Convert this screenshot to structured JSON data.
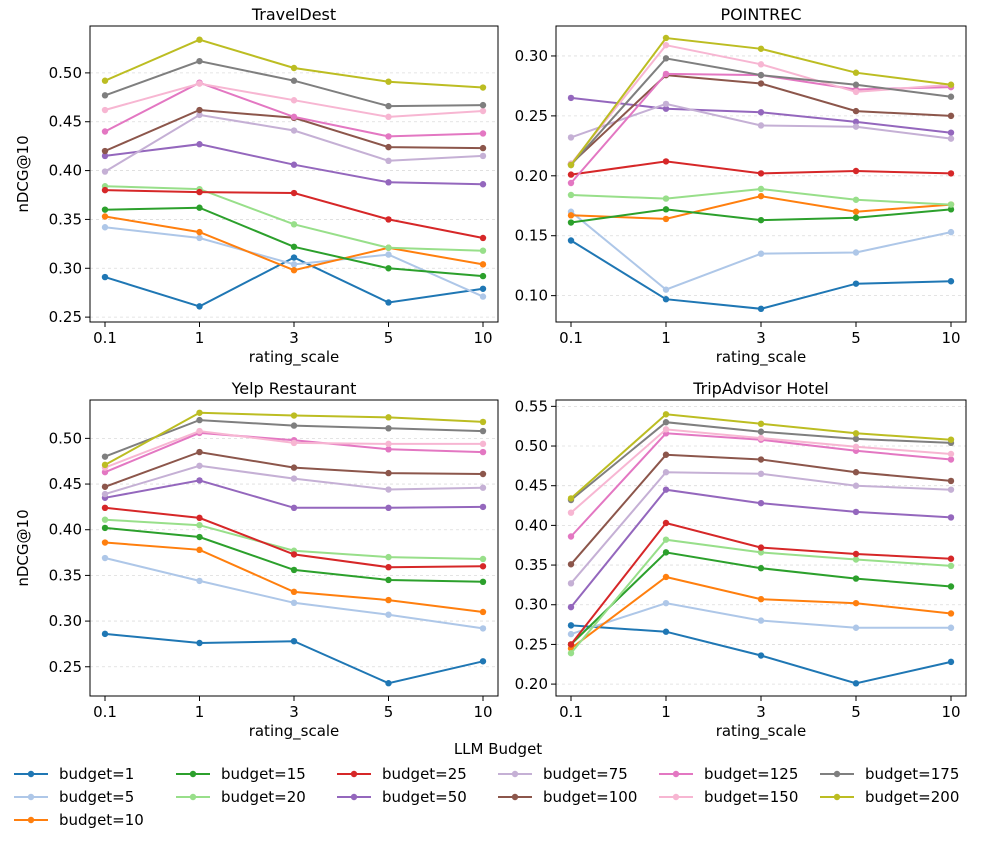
{
  "figure": {
    "legend_title": "LLM Budget"
  },
  "chart_data": [
    {
      "type": "line",
      "title": "TravelDest",
      "xlabel": "rating_scale",
      "ylabel": "nDCG@10",
      "categories": [
        "0.1",
        "1",
        "3",
        "5",
        "10"
      ],
      "ylim": [
        0.245,
        0.548
      ],
      "yticks": [
        "0.25",
        "0.30",
        "0.35",
        "0.40",
        "0.45",
        "0.50"
      ],
      "series": [
        {
          "name": "budget=1",
          "values": [
            0.291,
            0.261,
            0.311,
            0.265,
            0.279
          ]
        },
        {
          "name": "budget=5",
          "values": [
            0.342,
            0.331,
            0.304,
            0.314,
            0.271
          ]
        },
        {
          "name": "budget=10",
          "values": [
            0.353,
            0.337,
            0.298,
            0.321,
            0.304
          ]
        },
        {
          "name": "budget=15",
          "values": [
            0.36,
            0.362,
            0.322,
            0.3,
            0.292
          ]
        },
        {
          "name": "budget=20",
          "values": [
            0.384,
            0.381,
            0.345,
            0.321,
            0.318
          ]
        },
        {
          "name": "budget=25",
          "values": [
            0.38,
            0.378,
            0.377,
            0.35,
            0.331
          ]
        },
        {
          "name": "budget=50",
          "values": [
            0.415,
            0.427,
            0.406,
            0.388,
            0.386
          ]
        },
        {
          "name": "budget=75",
          "values": [
            0.399,
            0.457,
            0.441,
            0.41,
            0.415
          ]
        },
        {
          "name": "budget=100",
          "values": [
            0.42,
            0.462,
            0.454,
            0.424,
            0.423
          ]
        },
        {
          "name": "budget=125",
          "values": [
            0.44,
            0.49,
            0.455,
            0.435,
            0.438
          ]
        },
        {
          "name": "budget=150",
          "values": [
            0.462,
            0.489,
            0.472,
            0.455,
            0.461
          ]
        },
        {
          "name": "budget=175",
          "values": [
            0.477,
            0.512,
            0.492,
            0.466,
            0.467
          ]
        },
        {
          "name": "budget=200",
          "values": [
            0.492,
            0.534,
            0.505,
            0.491,
            0.485
          ]
        }
      ]
    },
    {
      "type": "line",
      "title": "POINTREC",
      "xlabel": "rating_scale",
      "ylabel": "",
      "categories": [
        "0.1",
        "1",
        "3",
        "5",
        "10"
      ],
      "ylim": [
        0.078,
        0.325
      ],
      "yticks": [
        "0.10",
        "0.15",
        "0.20",
        "0.25",
        "0.30"
      ],
      "series": [
        {
          "name": "budget=1",
          "values": [
            0.146,
            0.097,
            0.089,
            0.11,
            0.112
          ]
        },
        {
          "name": "budget=5",
          "values": [
            0.17,
            0.105,
            0.135,
            0.136,
            0.153
          ]
        },
        {
          "name": "budget=10",
          "values": [
            0.167,
            0.164,
            0.183,
            0.17,
            0.176
          ]
        },
        {
          "name": "budget=15",
          "values": [
            0.161,
            0.172,
            0.163,
            0.165,
            0.172
          ]
        },
        {
          "name": "budget=20",
          "values": [
            0.184,
            0.181,
            0.189,
            0.18,
            0.176
          ]
        },
        {
          "name": "budget=25",
          "values": [
            0.201,
            0.212,
            0.202,
            0.204,
            0.202
          ]
        },
        {
          "name": "budget=50",
          "values": [
            0.265,
            0.256,
            0.253,
            0.245,
            0.236
          ]
        },
        {
          "name": "budget=75",
          "values": [
            0.232,
            0.26,
            0.242,
            0.241,
            0.231
          ]
        },
        {
          "name": "budget=100",
          "values": [
            0.21,
            0.284,
            0.277,
            0.254,
            0.25
          ]
        },
        {
          "name": "budget=125",
          "values": [
            0.194,
            0.285,
            0.284,
            0.272,
            0.274
          ]
        },
        {
          "name": "budget=150",
          "values": [
            0.21,
            0.309,
            0.293,
            0.27,
            0.276
          ]
        },
        {
          "name": "budget=175",
          "values": [
            0.209,
            0.298,
            0.284,
            0.276,
            0.266
          ]
        },
        {
          "name": "budget=200",
          "values": [
            0.209,
            0.315,
            0.306,
            0.286,
            0.276
          ]
        }
      ]
    },
    {
      "type": "line",
      "title": "Yelp Restaurant",
      "xlabel": "rating_scale",
      "ylabel": "nDCG@10",
      "categories": [
        "0.1",
        "1",
        "3",
        "5",
        "10"
      ],
      "ylim": [
        0.218,
        0.542
      ],
      "yticks": [
        "0.25",
        "0.30",
        "0.35",
        "0.40",
        "0.45",
        "0.50"
      ],
      "series": [
        {
          "name": "budget=1",
          "values": [
            0.286,
            0.276,
            0.278,
            0.232,
            0.256
          ]
        },
        {
          "name": "budget=5",
          "values": [
            0.369,
            0.344,
            0.32,
            0.307,
            0.292
          ]
        },
        {
          "name": "budget=10",
          "values": [
            0.386,
            0.378,
            0.332,
            0.323,
            0.31
          ]
        },
        {
          "name": "budget=15",
          "values": [
            0.402,
            0.392,
            0.356,
            0.345,
            0.343
          ]
        },
        {
          "name": "budget=20",
          "values": [
            0.411,
            0.405,
            0.377,
            0.37,
            0.368
          ]
        },
        {
          "name": "budget=25",
          "values": [
            0.424,
            0.413,
            0.373,
            0.359,
            0.36
          ]
        },
        {
          "name": "budget=50",
          "values": [
            0.435,
            0.454,
            0.424,
            0.424,
            0.425
          ]
        },
        {
          "name": "budget=75",
          "values": [
            0.439,
            0.47,
            0.456,
            0.444,
            0.446
          ]
        },
        {
          "name": "budget=100",
          "values": [
            0.447,
            0.485,
            0.468,
            0.462,
            0.461
          ]
        },
        {
          "name": "budget=125",
          "values": [
            0.463,
            0.506,
            0.498,
            0.488,
            0.485
          ]
        },
        {
          "name": "budget=150",
          "values": [
            0.468,
            0.508,
            0.495,
            0.494,
            0.494
          ]
        },
        {
          "name": "budget=175",
          "values": [
            0.48,
            0.52,
            0.514,
            0.511,
            0.508
          ]
        },
        {
          "name": "budget=200",
          "values": [
            0.471,
            0.528,
            0.525,
            0.523,
            0.518
          ]
        }
      ]
    },
    {
      "type": "line",
      "title": "TripAdvisor Hotel",
      "xlabel": "rating_scale",
      "ylabel": "",
      "categories": [
        "0.1",
        "1",
        "3",
        "5",
        "10"
      ],
      "ylim": [
        0.185,
        0.558
      ],
      "yticks": [
        "0.20",
        "0.25",
        "0.30",
        "0.35",
        "0.40",
        "0.45",
        "0.50",
        "0.55"
      ],
      "series": [
        {
          "name": "budget=1",
          "values": [
            0.274,
            0.266,
            0.236,
            0.201,
            0.228
          ]
        },
        {
          "name": "budget=5",
          "values": [
            0.263,
            0.302,
            0.28,
            0.271,
            0.271
          ]
        },
        {
          "name": "budget=10",
          "values": [
            0.245,
            0.335,
            0.307,
            0.302,
            0.289
          ]
        },
        {
          "name": "budget=15",
          "values": [
            0.25,
            0.366,
            0.346,
            0.333,
            0.323
          ]
        },
        {
          "name": "budget=20",
          "values": [
            0.239,
            0.382,
            0.366,
            0.357,
            0.349
          ]
        },
        {
          "name": "budget=25",
          "values": [
            0.25,
            0.403,
            0.372,
            0.364,
            0.358
          ]
        },
        {
          "name": "budget=50",
          "values": [
            0.297,
            0.445,
            0.428,
            0.417,
            0.41
          ]
        },
        {
          "name": "budget=75",
          "values": [
            0.327,
            0.467,
            0.465,
            0.45,
            0.445
          ]
        },
        {
          "name": "budget=100",
          "values": [
            0.351,
            0.489,
            0.483,
            0.467,
            0.456
          ]
        },
        {
          "name": "budget=125",
          "values": [
            0.386,
            0.516,
            0.508,
            0.494,
            0.483
          ]
        },
        {
          "name": "budget=150",
          "values": [
            0.416,
            0.521,
            0.51,
            0.499,
            0.49
          ]
        },
        {
          "name": "budget=175",
          "values": [
            0.432,
            0.53,
            0.518,
            0.509,
            0.504
          ]
        },
        {
          "name": "budget=200",
          "values": [
            0.434,
            0.54,
            0.528,
            0.516,
            0.508
          ]
        }
      ]
    }
  ],
  "legend": {
    "items": [
      {
        "label": "budget=1",
        "color": "#1f77b4"
      },
      {
        "label": "budget=5",
        "color": "#aec7e8"
      },
      {
        "label": "budget=10",
        "color": "#ff7f0e"
      },
      {
        "label": "budget=15",
        "color": "#2ca02c"
      },
      {
        "label": "budget=20",
        "color": "#98df8a"
      },
      {
        "label": "budget=25",
        "color": "#d62728"
      },
      {
        "label": "budget=50",
        "color": "#9467bd"
      },
      {
        "label": "budget=75",
        "color": "#c5b0d5"
      },
      {
        "label": "budget=100",
        "color": "#8c564b"
      },
      {
        "label": "budget=125",
        "color": "#e377c2"
      },
      {
        "label": "budget=150",
        "color": "#f7b6d2"
      },
      {
        "label": "budget=175",
        "color": "#7f7f7f"
      },
      {
        "label": "budget=200",
        "color": "#bcbd22"
      }
    ]
  }
}
